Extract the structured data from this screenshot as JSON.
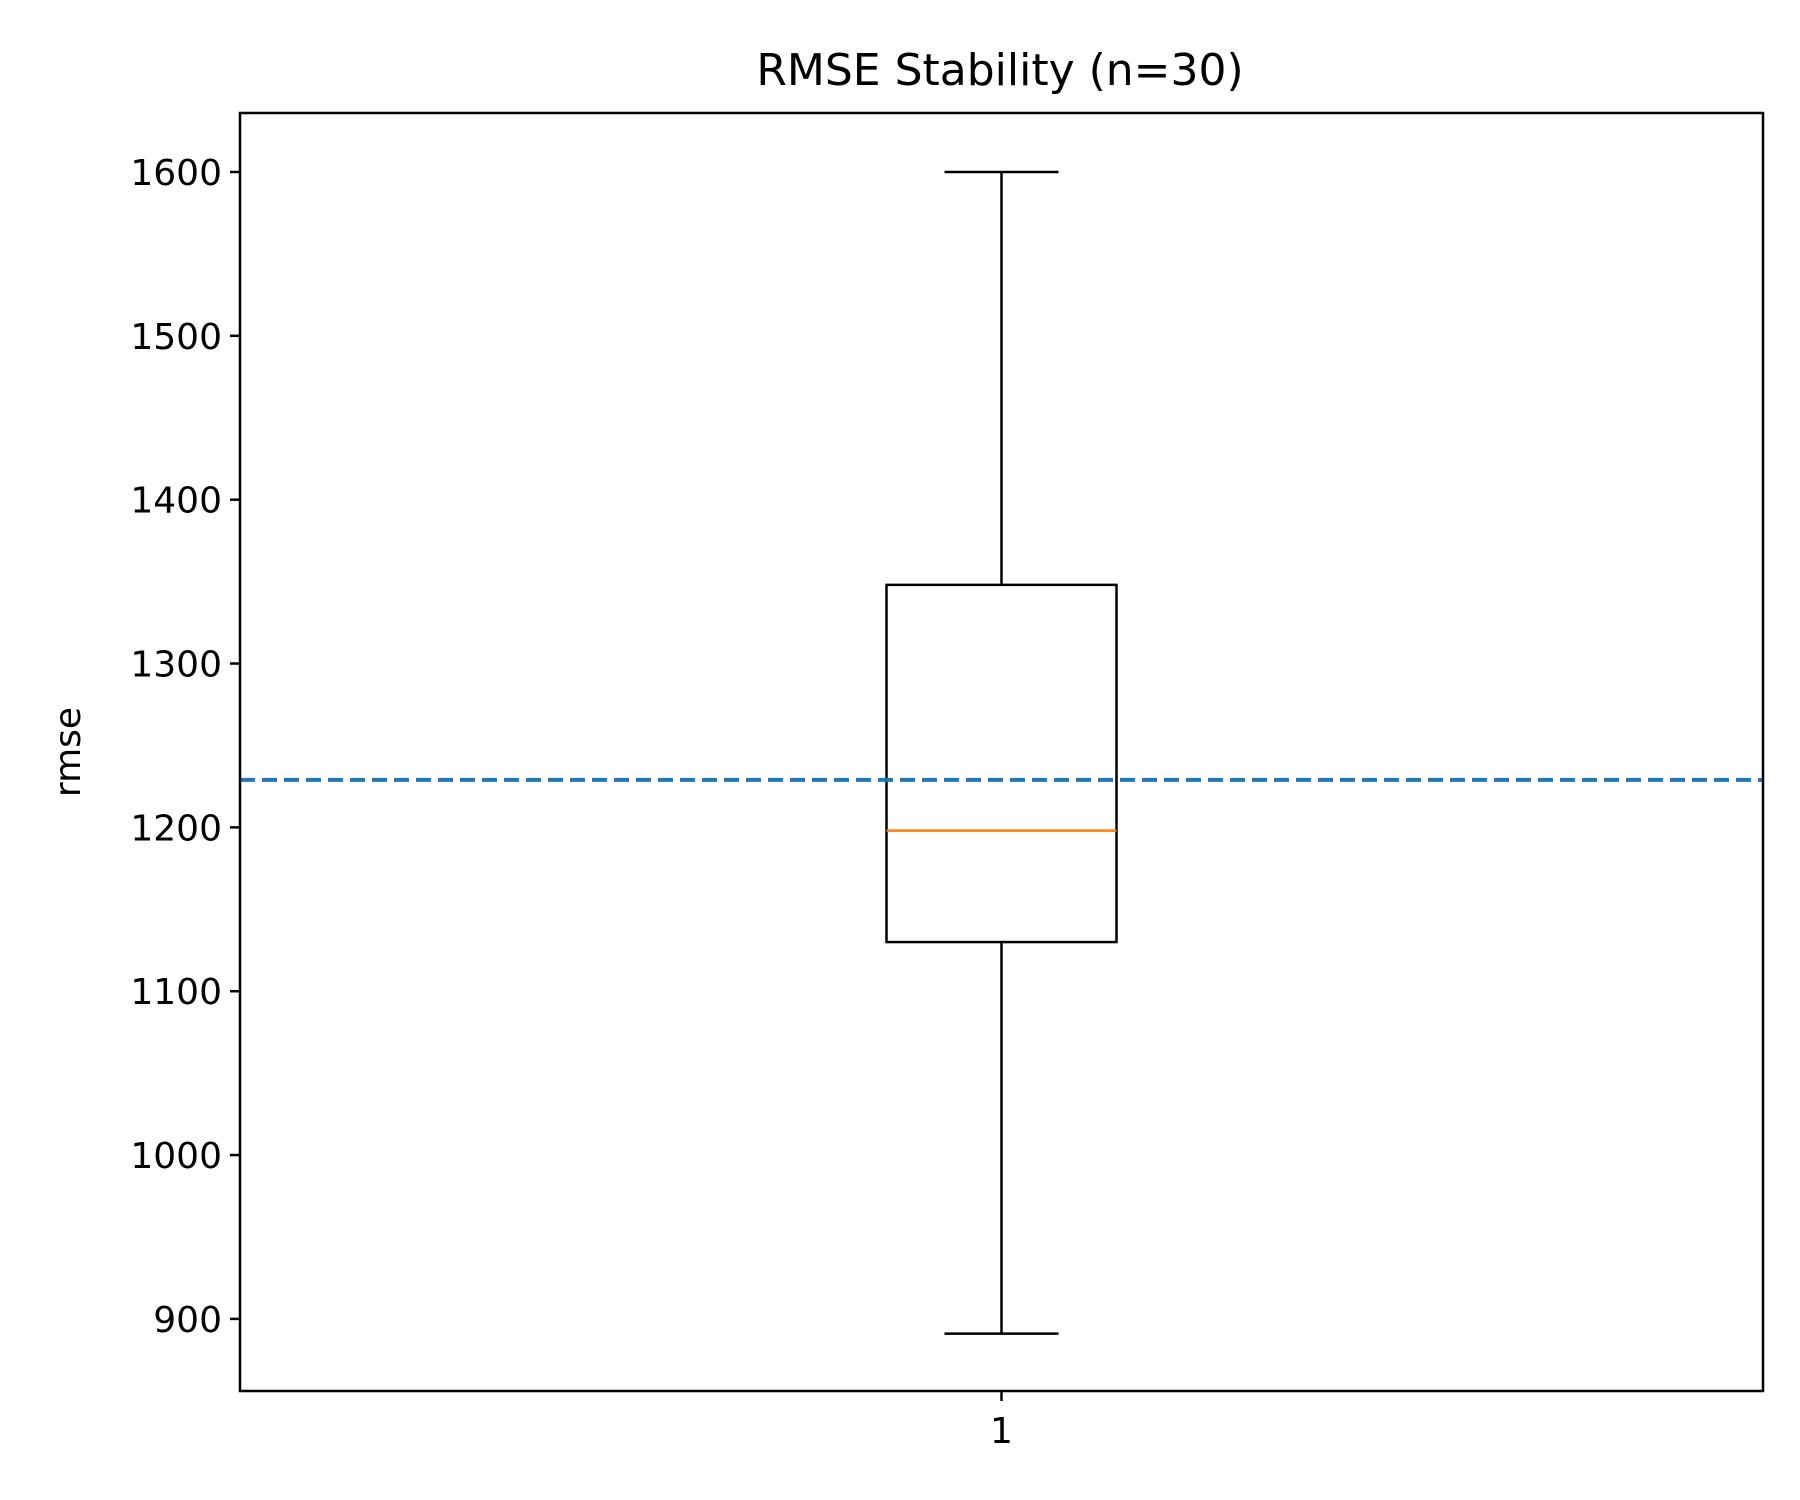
{
  "chart_data": {
    "type": "box",
    "title": "RMSE Stability (n=30)",
    "xlabel": "",
    "ylabel": "rmse",
    "categories": [
      "1"
    ],
    "ylim": [
      856,
      1636
    ],
    "yticks": [
      900,
      1000,
      1100,
      1200,
      1300,
      1400,
      1500,
      1600
    ],
    "grid": false,
    "boxes": [
      {
        "category": "1",
        "whisker_low": 891,
        "q1": 1130,
        "median": 1198,
        "q3": 1348,
        "whisker_high": 1600
      }
    ],
    "reference_line": {
      "y": 1229,
      "style": "dashed"
    },
    "colors": {
      "box": "#000000",
      "median": "#ff7f0e",
      "reference_line": "#1f77b4"
    }
  }
}
